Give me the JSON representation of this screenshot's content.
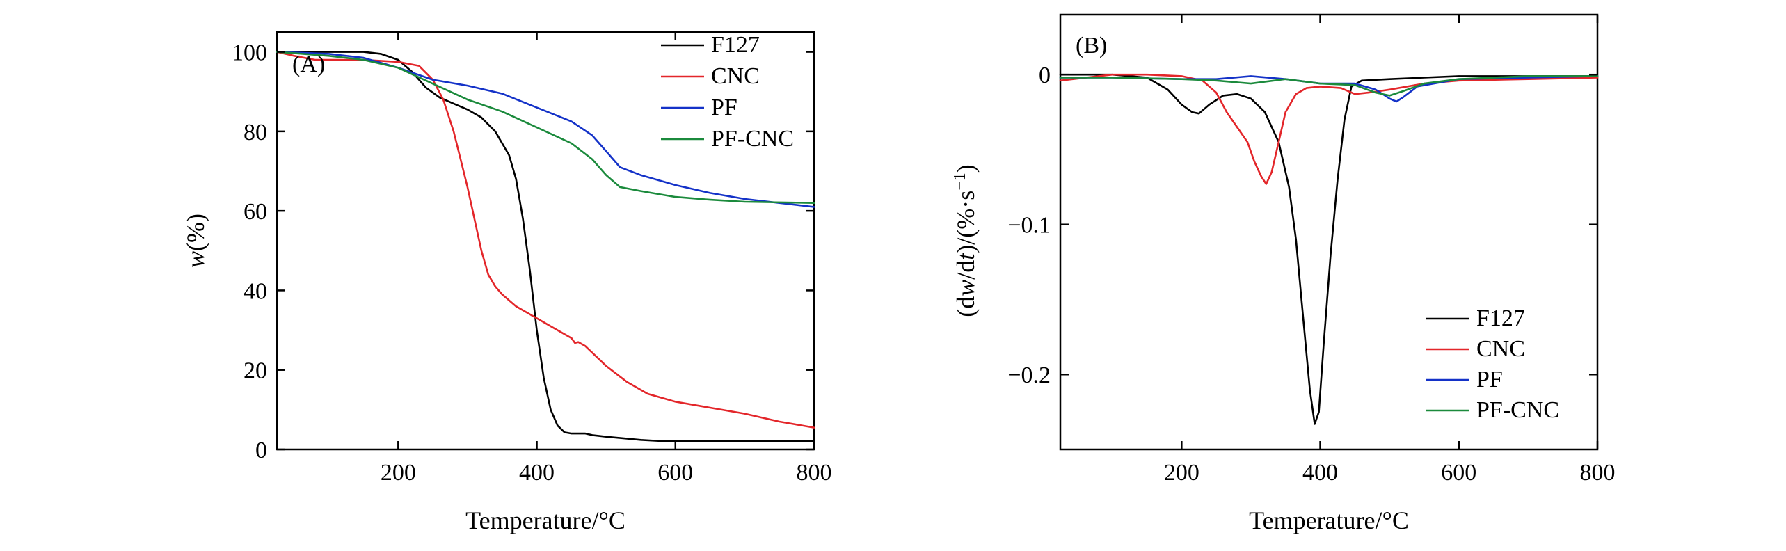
{
  "chart_data": [
    {
      "type": "line",
      "panel_label": "(A)",
      "xlabel": "Temperature/°C",
      "ylabel_italic": "w",
      "ylabel_rest": "(%)",
      "xlim": [
        25,
        800
      ],
      "ylim": [
        0,
        105
      ],
      "xticks": [
        200,
        400,
        600,
        800
      ],
      "yticks": [
        0,
        20,
        40,
        60,
        80,
        100
      ],
      "legend_position": "top-right",
      "series": [
        {
          "name": "F127",
          "color": "#000000",
          "x": [
            25,
            100,
            150,
            175,
            200,
            220,
            240,
            260,
            280,
            300,
            320,
            340,
            360,
            370,
            380,
            390,
            400,
            410,
            420,
            430,
            440,
            450,
            460,
            470,
            480,
            500,
            550,
            580,
            600,
            700,
            800
          ],
          "y": [
            100,
            100,
            100,
            99.5,
            98,
            95,
            91,
            88.5,
            87,
            85.5,
            83.5,
            80,
            74,
            68,
            58,
            45,
            30,
            18,
            10,
            6,
            4.3,
            4,
            4,
            4,
            3.6,
            3.2,
            2.4,
            2.1,
            2.1,
            2.1,
            2.1
          ]
        },
        {
          "name": "CNC",
          "color": "#e3262a",
          "x": [
            25,
            50,
            80,
            100,
            150,
            200,
            230,
            250,
            265,
            280,
            290,
            300,
            310,
            320,
            330,
            340,
            350,
            370,
            400,
            430,
            450,
            455,
            460,
            470,
            500,
            530,
            560,
            600,
            650,
            700,
            750,
            800
          ],
          "y": [
            100,
            99,
            98,
            98,
            98,
            97.5,
            96.5,
            93,
            88,
            80,
            73,
            66,
            58,
            50,
            44,
            41,
            39,
            36,
            33,
            30,
            28,
            26.8,
            27,
            26,
            21,
            17,
            14,
            12,
            10.5,
            9,
            7,
            5.5
          ]
        },
        {
          "name": "PF",
          "color": "#1432c8",
          "x": [
            25,
            100,
            150,
            200,
            250,
            300,
            350,
            400,
            450,
            480,
            500,
            520,
            550,
            600,
            650,
            700,
            800
          ],
          "y": [
            100,
            99.5,
            98.5,
            96,
            93,
            91.5,
            89.5,
            86,
            82.5,
            79,
            75,
            71,
            69,
            66.5,
            64.5,
            63,
            61
          ]
        },
        {
          "name": "PF-CNC",
          "color": "#1b8a3c",
          "x": [
            25,
            100,
            150,
            200,
            250,
            300,
            350,
            400,
            450,
            480,
            500,
            520,
            550,
            600,
            650,
            700,
            800
          ],
          "y": [
            100,
            99,
            98,
            96,
            92,
            88,
            85,
            81,
            77,
            73,
            69,
            66,
            65,
            63.5,
            62.8,
            62.3,
            62
          ]
        }
      ]
    },
    {
      "type": "line",
      "panel_label": "(B)",
      "xlabel": "Temperature/°C",
      "ylabel_parts": [
        "(d",
        "w",
        "/d",
        "t",
        ")/(%·s",
        "−1",
        ")"
      ],
      "xlim": [
        25,
        800
      ],
      "ylim": [
        -0.25,
        0.04
      ],
      "xticks": [
        200,
        400,
        600,
        800
      ],
      "yticks": [
        0,
        -0.1,
        -0.2
      ],
      "ytick_labels": [
        "0",
        "−0.1",
        "−0.2"
      ],
      "legend_position": "bottom-right",
      "series": [
        {
          "name": "F127",
          "color": "#000000",
          "x": [
            25,
            100,
            150,
            180,
            200,
            215,
            225,
            240,
            260,
            280,
            300,
            320,
            340,
            355,
            365,
            375,
            385,
            392,
            398,
            405,
            415,
            425,
            435,
            445,
            460,
            500,
            550,
            600,
            700,
            800
          ],
          "y": [
            0,
            0,
            -0.002,
            -0.01,
            -0.02,
            -0.025,
            -0.026,
            -0.02,
            -0.014,
            -0.013,
            -0.016,
            -0.025,
            -0.045,
            -0.075,
            -0.11,
            -0.16,
            -0.21,
            -0.233,
            -0.225,
            -0.18,
            -0.12,
            -0.07,
            -0.03,
            -0.008,
            -0.004,
            -0.003,
            -0.002,
            -0.001,
            -0.001,
            -0.001
          ]
        },
        {
          "name": "CNC",
          "color": "#e3262a",
          "x": [
            25,
            100,
            150,
            200,
            230,
            250,
            265,
            280,
            295,
            305,
            315,
            322,
            330,
            340,
            350,
            365,
            380,
            400,
            430,
            450,
            470,
            500,
            550,
            600,
            700,
            800
          ],
          "y": [
            -0.004,
            0,
            0,
            -0.001,
            -0.004,
            -0.012,
            -0.025,
            -0.035,
            -0.045,
            -0.058,
            -0.068,
            -0.073,
            -0.065,
            -0.045,
            -0.025,
            -0.013,
            -0.009,
            -0.008,
            -0.009,
            -0.013,
            -0.012,
            -0.01,
            -0.006,
            -0.004,
            -0.003,
            -0.002
          ]
        },
        {
          "name": "PF",
          "color": "#1432c8",
          "x": [
            25,
            100,
            200,
            250,
            300,
            350,
            400,
            450,
            480,
            500,
            510,
            520,
            540,
            600,
            700,
            800
          ],
          "y": [
            -0.002,
            -0.002,
            -0.003,
            -0.003,
            -0.001,
            -0.003,
            -0.006,
            -0.006,
            -0.01,
            -0.016,
            -0.018,
            -0.015,
            -0.008,
            -0.003,
            -0.002,
            -0.001
          ]
        },
        {
          "name": "PF-CNC",
          "color": "#1b8a3c",
          "x": [
            25,
            100,
            200,
            250,
            300,
            350,
            400,
            450,
            480,
            500,
            520,
            550,
            600,
            700,
            800
          ],
          "y": [
            -0.002,
            -0.002,
            -0.003,
            -0.004,
            -0.006,
            -0.003,
            -0.006,
            -0.007,
            -0.012,
            -0.014,
            -0.011,
            -0.006,
            -0.003,
            -0.001,
            -0.001
          ]
        }
      ]
    }
  ]
}
